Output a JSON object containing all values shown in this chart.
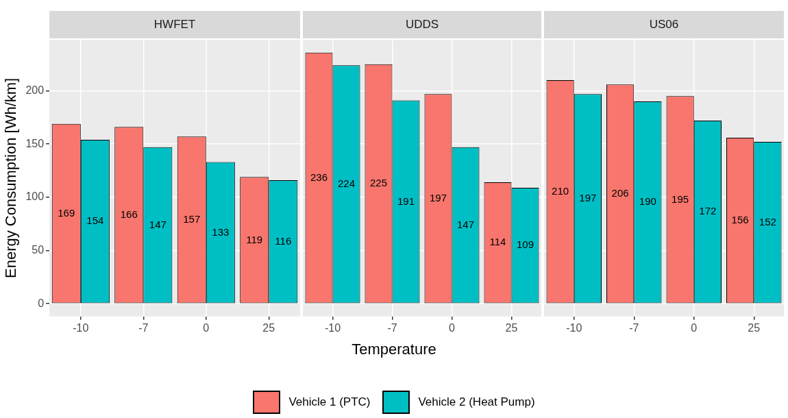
{
  "chart_data": [
    {
      "type": "bar",
      "title": "HWFET",
      "ylabel": "Energy Consumption [Wh/km]",
      "categories": [
        "-10",
        "-7",
        "0",
        "25"
      ],
      "series": [
        {
          "name": "Vehicle 1 (PTC)",
          "color": "#f8766d",
          "values": [
            169,
            166,
            157,
            119
          ]
        },
        {
          "name": "Vehicle 2 (Heat Pump)",
          "color": "#00bfc4",
          "values": [
            154,
            147,
            133,
            116
          ]
        }
      ],
      "ylim": [
        -12,
        248
      ],
      "yticks": [
        0,
        50,
        100,
        150,
        200
      ],
      "grid": true,
      "data_labels": true,
      "legend": "bottom"
    },
    {
      "type": "bar",
      "title": "UDDS",
      "xlabel": "Temperature",
      "categories": [
        "-10",
        "-7",
        "0",
        "25"
      ],
      "series": [
        {
          "color": "#f8766d",
          "values": [
            236,
            225,
            197,
            114
          ]
        },
        {
          "color": "#00bfc4",
          "values": [
            224,
            191,
            147,
            109
          ]
        }
      ],
      "ylim": [
        -12,
        248
      ],
      "yticks": [
        0,
        50,
        100,
        150,
        200
      ],
      "grid": true,
      "data_labels": true,
      "tick_labels": "x"
    },
    {
      "type": "bar",
      "title": "US06",
      "categories": [
        "-10",
        "-7",
        "0",
        "25"
      ],
      "series": [
        {
          "color": "#f8766d",
          "values": [
            210,
            206,
            195,
            156
          ]
        },
        {
          "color": "#00bfc4",
          "values": [
            197,
            190,
            172,
            152
          ]
        }
      ],
      "ylim": [
        -12,
        248
      ],
      "yticks": [
        0,
        50,
        100,
        150,
        200
      ],
      "grid": true,
      "data_labels": true,
      "tick_labels": "x"
    }
  ]
}
